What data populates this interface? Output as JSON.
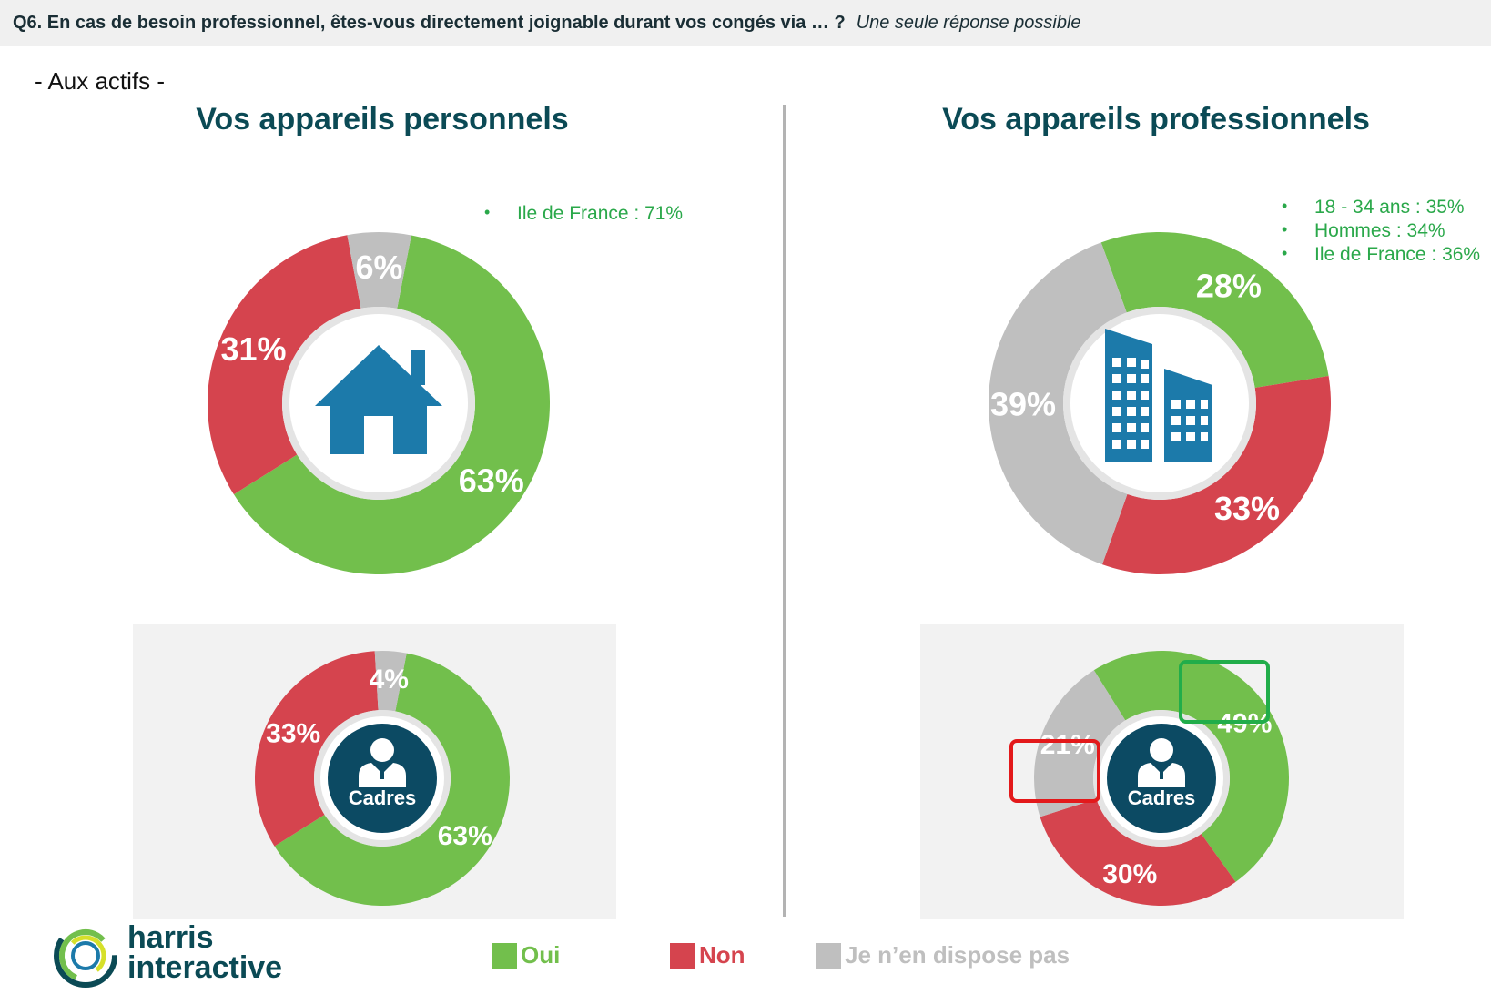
{
  "header": {
    "question": "Q6. En cas de besoin professionnel, êtes-vous directement joignable durant vos congés via … ?",
    "note": "Une seule réponse possible"
  },
  "audience": "- Aux actifs -",
  "titles": {
    "left": "Vos appareils personnels",
    "right": "Vos appareils professionnels"
  },
  "colors": {
    "oui": "#72bf4c",
    "non": "#d5444e",
    "na": "#bfbfbf",
    "title": "#0b4a55",
    "note": "#2aa84a",
    "icon_blue": "#1c7aaa",
    "cadres_circle": "#0c4a63"
  },
  "legend": [
    {
      "label": "Oui",
      "color": "#72bf4c"
    },
    {
      "label": "Non",
      "color": "#d5444e"
    },
    {
      "label": "Je n’en dispose pas",
      "color": "#bfbfbf"
    }
  ],
  "notes": {
    "left": [
      "Ile de France : 71%"
    ],
    "right": [
      "18 - 34 ans : 35%",
      "Hommes : 34%",
      "Ile de France : 36%"
    ]
  },
  "cadres_label": "Cadres",
  "icons": {
    "personnel": "house-icon",
    "professionnel": "office-building-icon",
    "cadres": "businessman-icon"
  },
  "logo": {
    "line1": "harris",
    "line2": "interactive"
  },
  "chart_data": [
    {
      "type": "pie",
      "panel": "Vos appareils personnels",
      "segment": "Ensemble",
      "categories": [
        "Oui",
        "Non",
        "Je n’en dispose pas"
      ],
      "values": [
        63,
        31,
        6
      ],
      "labels": [
        "63%",
        "31%",
        "6%"
      ]
    },
    {
      "type": "pie",
      "panel": "Vos appareils professionnels",
      "segment": "Ensemble",
      "categories": [
        "Oui",
        "Non",
        "Je n’en dispose pas"
      ],
      "values": [
        28,
        33,
        39
      ],
      "labels": [
        "28%",
        "33%",
        "39%"
      ]
    },
    {
      "type": "pie",
      "panel": "Vos appareils personnels",
      "segment": "Cadres",
      "categories": [
        "Oui",
        "Non",
        "Je n’en dispose pas"
      ],
      "values": [
        63,
        33,
        4
      ],
      "labels": [
        "63%",
        "33%",
        "4%"
      ]
    },
    {
      "type": "pie",
      "panel": "Vos appareils professionnels",
      "segment": "Cadres",
      "categories": [
        "Oui",
        "Non",
        "Je n’en dispose pas"
      ],
      "values": [
        49,
        30,
        21
      ],
      "labels": [
        "49%",
        "30%",
        "21%"
      ]
    }
  ]
}
